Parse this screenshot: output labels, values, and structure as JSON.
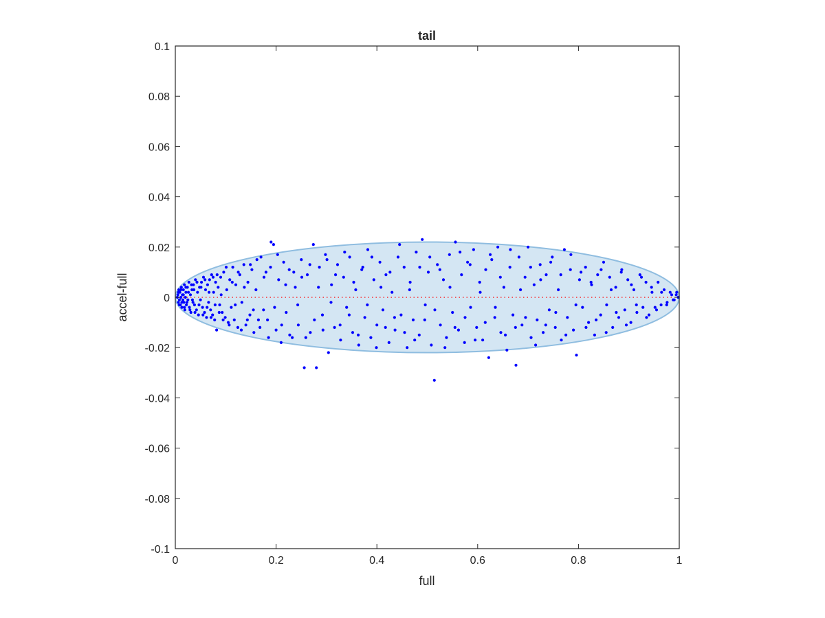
{
  "chart_data": {
    "type": "scatter",
    "title": "tail",
    "xlabel": "full",
    "ylabel": "accel-full",
    "xlim": [
      0,
      1
    ],
    "ylim": [
      -0.1,
      0.1
    ],
    "x_ticks": [
      0,
      0.2,
      0.4,
      0.6,
      0.8,
      1
    ],
    "x_tick_labels": [
      "0",
      "0.2",
      "0.4",
      "0.6",
      "0.8",
      "1"
    ],
    "y_ticks": [
      -0.1,
      -0.08,
      -0.06,
      -0.04,
      -0.02,
      0,
      0.02,
      0.04,
      0.06,
      0.08,
      0.1
    ],
    "y_tick_labels": [
      "-0.1",
      "-0.08",
      "-0.06",
      "-0.04",
      "-0.02",
      "0",
      "0.02",
      "0.04",
      "0.06",
      "0.08",
      "0.1"
    ],
    "grid": false,
    "marker_color": "#0000ff",
    "reference_line": {
      "y": 0,
      "x_range": [
        0,
        1
      ],
      "color": "#ff0000",
      "style": "dotted"
    },
    "ellipse": {
      "center": [
        0.5,
        0
      ],
      "x_radius": 0.5,
      "y_radius": 0.022,
      "fill": "#d4e6f3",
      "stroke": "#8fbde0"
    },
    "points": [
      [
        0.005,
        0.001
      ],
      [
        0.006,
        -0.002
      ],
      [
        0.007,
        0.003
      ],
      [
        0.008,
        -0.001
      ],
      [
        0.009,
        0.002
      ],
      [
        0.01,
        -0.003
      ],
      [
        0.011,
        0.0
      ],
      [
        0.012,
        0.004
      ],
      [
        0.013,
        -0.004
      ],
      [
        0.014,
        0.001
      ],
      [
        0.015,
        -0.001
      ],
      [
        0.016,
        0.003
      ],
      [
        0.017,
        -0.002
      ],
      [
        0.018,
        0.005
      ],
      [
        0.019,
        -0.005
      ],
      [
        0.02,
        0.0
      ],
      [
        0.021,
        0.002
      ],
      [
        0.022,
        -0.003
      ],
      [
        0.024,
        0.004
      ],
      [
        0.025,
        -0.001
      ],
      [
        0.027,
        0.006
      ],
      [
        0.028,
        -0.004
      ],
      [
        0.03,
        0.001
      ],
      [
        0.031,
        -0.006
      ],
      [
        0.033,
        0.003
      ],
      [
        0.035,
        -0.002
      ],
      [
        0.036,
        0.005
      ],
      [
        0.038,
        -0.003
      ],
      [
        0.04,
        0.007
      ],
      [
        0.042,
        -0.005
      ],
      [
        0.044,
        0.002
      ],
      [
        0.046,
        -0.007
      ],
      [
        0.048,
        0.004
      ],
      [
        0.05,
        -0.001
      ],
      [
        0.052,
        0.006
      ],
      [
        0.054,
        -0.004
      ],
      [
        0.056,
        0.008
      ],
      [
        0.058,
        -0.006
      ],
      [
        0.06,
        0.003
      ],
      [
        0.062,
        -0.008
      ],
      [
        0.064,
        0.005
      ],
      [
        0.066,
        -0.002
      ],
      [
        0.068,
        0.007
      ],
      [
        0.07,
        -0.005
      ],
      [
        0.072,
        0.009
      ],
      [
        0.074,
        -0.007
      ],
      [
        0.076,
        0.002
      ],
      [
        0.078,
        -0.009
      ],
      [
        0.08,
        0.006
      ],
      [
        0.082,
        -0.013
      ],
      [
        0.085,
        0.004
      ],
      [
        0.088,
        -0.003
      ],
      [
        0.09,
        0.008
      ],
      [
        0.093,
        -0.006
      ],
      [
        0.096,
        0.01
      ],
      [
        0.099,
        -0.008
      ],
      [
        0.102,
        0.003
      ],
      [
        0.105,
        -0.01
      ],
      [
        0.108,
        0.007
      ],
      [
        0.111,
        -0.004
      ],
      [
        0.114,
        0.012
      ],
      [
        0.117,
        -0.009
      ],
      [
        0.12,
        0.005
      ],
      [
        0.124,
        -0.012
      ],
      [
        0.128,
        0.009
      ],
      [
        0.132,
        -0.002
      ],
      [
        0.136,
        0.013
      ],
      [
        0.14,
        -0.011
      ],
      [
        0.144,
        0.006
      ],
      [
        0.148,
        -0.007
      ],
      [
        0.152,
        0.011
      ],
      [
        0.156,
        -0.014
      ],
      [
        0.16,
        0.003
      ],
      [
        0.165,
        -0.009
      ],
      [
        0.17,
        0.016
      ],
      [
        0.175,
        -0.005
      ],
      [
        0.18,
        0.01
      ],
      [
        0.185,
        -0.016
      ],
      [
        0.19,
        0.022
      ],
      [
        0.195,
        0.021
      ],
      [
        0.2,
        -0.013
      ],
      [
        0.205,
        0.007
      ],
      [
        0.21,
        -0.018
      ],
      [
        0.215,
        0.014
      ],
      [
        0.22,
        -0.006
      ],
      [
        0.226,
        0.011
      ],
      [
        0.232,
        -0.016
      ],
      [
        0.238,
        0.004
      ],
      [
        0.244,
        -0.011
      ],
      [
        0.25,
        0.015
      ],
      [
        0.256,
        -0.028
      ],
      [
        0.262,
        0.009
      ],
      [
        0.268,
        -0.014
      ],
      [
        0.274,
        0.021
      ],
      [
        0.28,
        -0.028
      ],
      [
        0.286,
        0.012
      ],
      [
        0.292,
        -0.007
      ],
      [
        0.298,
        0.017
      ],
      [
        0.304,
        -0.022
      ],
      [
        0.31,
        0.005
      ],
      [
        0.316,
        -0.012
      ],
      [
        0.322,
        0.013
      ],
      [
        0.328,
        -0.017
      ],
      [
        0.334,
        0.008
      ],
      [
        0.34,
        -0.004
      ],
      [
        0.346,
        0.016
      ],
      [
        0.352,
        -0.014
      ],
      [
        0.358,
        0.003
      ],
      [
        0.364,
        -0.019
      ],
      [
        0.37,
        0.011
      ],
      [
        0.376,
        -0.008
      ],
      [
        0.382,
        0.019
      ],
      [
        0.388,
        -0.016
      ],
      [
        0.394,
        0.007
      ],
      [
        0.4,
        -0.011
      ],
      [
        0.406,
        0.014
      ],
      [
        0.412,
        -0.005
      ],
      [
        0.418,
        0.009
      ],
      [
        0.424,
        -0.018
      ],
      [
        0.43,
        0.002
      ],
      [
        0.436,
        -0.013
      ],
      [
        0.442,
        0.016
      ],
      [
        0.448,
        -0.007
      ],
      [
        0.454,
        0.012
      ],
      [
        0.46,
        -0.02
      ],
      [
        0.466,
        0.006
      ],
      [
        0.472,
        -0.009
      ],
      [
        0.478,
        0.018
      ],
      [
        0.484,
        -0.015
      ],
      [
        0.49,
        0.023
      ],
      [
        0.496,
        -0.003
      ],
      [
        0.502,
        0.01
      ],
      [
        0.508,
        -0.019
      ],
      [
        0.514,
        -0.033
      ],
      [
        0.52,
        0.013
      ],
      [
        0.526,
        -0.011
      ],
      [
        0.532,
        0.007
      ],
      [
        0.538,
        -0.016
      ],
      [
        0.544,
        0.017
      ],
      [
        0.55,
        -0.006
      ],
      [
        0.556,
        0.022
      ],
      [
        0.562,
        -0.013
      ],
      [
        0.568,
        0.009
      ],
      [
        0.574,
        -0.018
      ],
      [
        0.58,
        0.014
      ],
      [
        0.586,
        -0.004
      ],
      [
        0.592,
        0.019
      ],
      [
        0.598,
        -0.012
      ],
      [
        0.604,
        0.006
      ],
      [
        0.61,
        -0.017
      ],
      [
        0.616,
        0.011
      ],
      [
        0.622,
        -0.024
      ],
      [
        0.628,
        0.015
      ],
      [
        0.634,
        -0.008
      ],
      [
        0.64,
        0.02
      ],
      [
        0.646,
        -0.014
      ],
      [
        0.652,
        0.004
      ],
      [
        0.658,
        -0.021
      ],
      [
        0.664,
        0.012
      ],
      [
        0.67,
        -0.007
      ],
      [
        0.676,
        -0.027
      ],
      [
        0.682,
        0.016
      ],
      [
        0.688,
        -0.011
      ],
      [
        0.694,
        0.008
      ],
      [
        0.7,
        0.02
      ],
      [
        0.706,
        -0.016
      ],
      [
        0.712,
        0.005
      ],
      [
        0.718,
        -0.009
      ],
      [
        0.724,
        0.013
      ],
      [
        0.73,
        -0.014
      ],
      [
        0.736,
        0.009
      ],
      [
        0.742,
        -0.005
      ],
      [
        0.748,
        0.016
      ],
      [
        0.754,
        -0.012
      ],
      [
        0.76,
        0.003
      ],
      [
        0.766,
        -0.017
      ],
      [
        0.772,
        0.019
      ],
      [
        0.778,
        -0.008
      ],
      [
        0.784,
        0.011
      ],
      [
        0.79,
        -0.013
      ],
      [
        0.796,
        -0.023
      ],
      [
        0.802,
        0.007
      ],
      [
        0.808,
        -0.004
      ],
      [
        0.814,
        0.012
      ],
      [
        0.82,
        -0.01
      ],
      [
        0.826,
        0.005
      ],
      [
        0.832,
        -0.015
      ],
      [
        0.838,
        0.009
      ],
      [
        0.844,
        -0.007
      ],
      [
        0.85,
        0.014
      ],
      [
        0.856,
        -0.003
      ],
      [
        0.862,
        0.008
      ],
      [
        0.868,
        -0.012
      ],
      [
        0.874,
        0.004
      ],
      [
        0.88,
        -0.008
      ],
      [
        0.886,
        0.011
      ],
      [
        0.892,
        -0.005
      ],
      [
        0.898,
        0.007
      ],
      [
        0.904,
        -0.01
      ],
      [
        0.91,
        0.003
      ],
      [
        0.916,
        -0.006
      ],
      [
        0.922,
        0.009
      ],
      [
        0.928,
        -0.004
      ],
      [
        0.934,
        0.006
      ],
      [
        0.94,
        -0.007
      ],
      [
        0.946,
        0.002
      ],
      [
        0.952,
        -0.004
      ],
      [
        0.958,
        0.006
      ],
      [
        0.964,
        -0.003
      ],
      [
        0.97,
        0.003
      ],
      [
        0.976,
        -0.002
      ],
      [
        0.982,
        0.002
      ],
      [
        0.988,
        -0.001
      ],
      [
        0.994,
        0.001
      ],
      [
        0.998,
        0.0
      ],
      [
        0.004,
        0.0
      ],
      [
        0.006,
        0.002
      ],
      [
        0.008,
        -0.003
      ],
      [
        0.011,
        0.003
      ],
      [
        0.013,
        -0.002
      ],
      [
        0.016,
        0.001
      ],
      [
        0.018,
        -0.004
      ],
      [
        0.021,
        0.004
      ],
      [
        0.023,
        -0.002
      ],
      [
        0.026,
        0.002
      ],
      [
        0.029,
        -0.005
      ],
      [
        0.032,
        0.005
      ],
      [
        0.034,
        -0.001
      ],
      [
        0.037,
        0.003
      ],
      [
        0.039,
        -0.006
      ],
      [
        0.043,
        0.006
      ],
      [
        0.047,
        -0.003
      ],
      [
        0.051,
        0.004
      ],
      [
        0.055,
        -0.007
      ],
      [
        0.059,
        0.007
      ],
      [
        0.063,
        -0.004
      ],
      [
        0.067,
        0.002
      ],
      [
        0.071,
        -0.008
      ],
      [
        0.075,
        0.008
      ],
      [
        0.079,
        -0.003
      ],
      [
        0.083,
        0.009
      ],
      [
        0.087,
        -0.006
      ],
      [
        0.091,
        0.001
      ],
      [
        0.095,
        -0.009
      ],
      [
        0.101,
        0.012
      ],
      [
        0.107,
        -0.011
      ],
      [
        0.113,
        0.006
      ],
      [
        0.119,
        -0.003
      ],
      [
        0.125,
        0.01
      ],
      [
        0.131,
        -0.013
      ],
      [
        0.137,
        0.004
      ],
      [
        0.143,
        -0.009
      ],
      [
        0.149,
        0.013
      ],
      [
        0.155,
        -0.005
      ],
      [
        0.162,
        0.015
      ],
      [
        0.168,
        -0.012
      ],
      [
        0.176,
        0.008
      ],
      [
        0.183,
        -0.009
      ],
      [
        0.189,
        0.012
      ],
      [
        0.197,
        -0.004
      ],
      [
        0.203,
        0.017
      ],
      [
        0.211,
        -0.011
      ],
      [
        0.219,
        0.005
      ],
      [
        0.227,
        -0.015
      ],
      [
        0.235,
        0.01
      ],
      [
        0.243,
        -0.003
      ],
      [
        0.251,
        0.008
      ],
      [
        0.259,
        -0.016
      ],
      [
        0.267,
        0.013
      ],
      [
        0.276,
        -0.009
      ],
      [
        0.284,
        0.004
      ],
      [
        0.293,
        -0.013
      ],
      [
        0.301,
        0.015
      ],
      [
        0.309,
        -0.002
      ],
      [
        0.318,
        0.009
      ],
      [
        0.327,
        -0.011
      ],
      [
        0.336,
        0.018
      ],
      [
        0.345,
        -0.007
      ],
      [
        0.354,
        0.006
      ],
      [
        0.363,
        -0.015
      ],
      [
        0.372,
        0.012
      ],
      [
        0.381,
        -0.003
      ],
      [
        0.39,
        0.016
      ],
      [
        0.399,
        -0.02
      ],
      [
        0.408,
        0.004
      ],
      [
        0.417,
        -0.012
      ],
      [
        0.426,
        0.01
      ],
      [
        0.435,
        -0.008
      ],
      [
        0.445,
        0.021
      ],
      [
        0.455,
        -0.014
      ],
      [
        0.465,
        0.003
      ],
      [
        0.475,
        -0.017
      ],
      [
        0.485,
        0.012
      ],
      [
        0.495,
        -0.009
      ],
      [
        0.505,
        0.016
      ],
      [
        0.515,
        -0.005
      ],
      [
        0.525,
        0.011
      ],
      [
        0.535,
        -0.02
      ],
      [
        0.545,
        0.004
      ],
      [
        0.555,
        -0.012
      ],
      [
        0.565,
        0.018
      ],
      [
        0.575,
        -0.008
      ],
      [
        0.585,
        0.013
      ],
      [
        0.595,
        -0.017
      ],
      [
        0.605,
        0.002
      ],
      [
        0.615,
        -0.01
      ],
      [
        0.625,
        0.017
      ],
      [
        0.635,
        -0.004
      ],
      [
        0.645,
        0.008
      ],
      [
        0.655,
        -0.015
      ],
      [
        0.665,
        0.019
      ],
      [
        0.675,
        -0.012
      ],
      [
        0.685,
        0.003
      ],
      [
        0.695,
        -0.008
      ],
      [
        0.705,
        0.012
      ],
      [
        0.715,
        -0.019
      ],
      [
        0.725,
        0.007
      ],
      [
        0.735,
        -0.011
      ],
      [
        0.745,
        0.014
      ],
      [
        0.755,
        -0.006
      ],
      [
        0.765,
        0.009
      ],
      [
        0.775,
        -0.015
      ],
      [
        0.785,
        0.017
      ],
      [
        0.795,
        -0.003
      ],
      [
        0.805,
        0.01
      ],
      [
        0.815,
        -0.012
      ],
      [
        0.825,
        0.006
      ],
      [
        0.835,
        -0.009
      ],
      [
        0.845,
        0.011
      ],
      [
        0.855,
        -0.014
      ],
      [
        0.865,
        0.003
      ],
      [
        0.875,
        -0.006
      ],
      [
        0.885,
        0.01
      ],
      [
        0.895,
        -0.011
      ],
      [
        0.905,
        0.005
      ],
      [
        0.915,
        -0.003
      ],
      [
        0.925,
        0.008
      ],
      [
        0.935,
        -0.008
      ],
      [
        0.945,
        0.004
      ],
      [
        0.955,
        -0.005
      ],
      [
        0.965,
        0.002
      ],
      [
        0.975,
        -0.003
      ],
      [
        0.985,
        0.001
      ],
      [
        0.99,
        -0.001
      ],
      [
        0.995,
        0.002
      ]
    ]
  }
}
